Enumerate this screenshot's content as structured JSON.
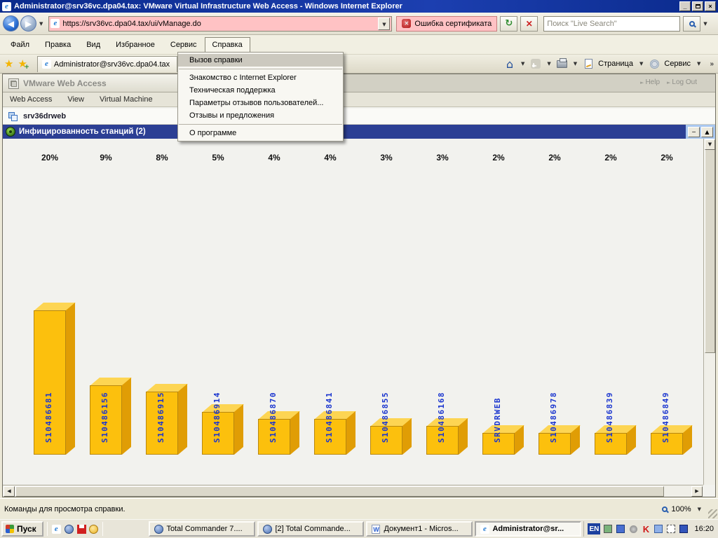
{
  "window": {
    "title": "Administrator@srv36vc.dpa04.tax: VMware Virtual Infrastructure Web Access - Windows Internet Explorer"
  },
  "address_bar": {
    "url": "https://srv36vc.dpa04.tax/ui/vManage.do",
    "cert_error": "Ошибка сертификата",
    "search_placeholder": "Поиск \"Live Search\""
  },
  "menu_bar": {
    "items": [
      "Файл",
      "Правка",
      "Вид",
      "Избранное",
      "Сервис",
      "Справка"
    ],
    "active_item": "Справка"
  },
  "help_menu": {
    "highlighted": "Вызов справки",
    "groups": [
      [
        "Вызов справки"
      ],
      [
        "Знакомство с Internet Explorer",
        "Техническая поддержка",
        "Параметры отзывов пользователей...",
        "Отзывы и предложения"
      ],
      [
        "О программе"
      ]
    ]
  },
  "tabs": {
    "active": "Administrator@srv36vc.dpa04.tax"
  },
  "command_bar": {
    "page_label": "Страница",
    "tools_label": "Сервис",
    "overflow": "»"
  },
  "vmware": {
    "app_title": "VMware Web Access",
    "menu_items": [
      "Web Access",
      "View",
      "Virtual Machine"
    ],
    "header_links": [
      "Help",
      "Log Out"
    ],
    "host_name": "srv36drweb",
    "section_title": "Инфицированность станций (2)"
  },
  "chart_data": {
    "type": "bar",
    "title": "Инфицированность станций (2)",
    "categories": [
      "S10486681",
      "S10486156",
      "S10486915",
      "S10486914",
      "S10486870",
      "S10486841",
      "S10486855",
      "S10486168",
      "SRVDRWEB",
      "S10486978",
      "S10486839",
      "S10486849"
    ],
    "values": [
      20,
      9,
      8,
      5,
      4,
      4,
      3,
      3,
      2,
      2,
      2,
      2
    ],
    "value_suffix": "%",
    "bar_color": "#fcc00d",
    "label_color": "#1a35cf",
    "style": "3d-column",
    "legend": "none",
    "grid": false
  },
  "status_bar": {
    "text": "Команды для просмотра справки.",
    "zoom_level": "100%"
  },
  "taskbar": {
    "start_label": "Пуск",
    "buttons": [
      {
        "app": "total-commander",
        "label": "Total Commander 7....",
        "active": false
      },
      {
        "app": "total-commander",
        "label": "[2] Total Commande...",
        "active": false
      },
      {
        "app": "word",
        "label": "Документ1 - Micros...",
        "active": false
      },
      {
        "app": "internet-explorer",
        "label": "Administrator@sr...",
        "active": true
      }
    ],
    "language": "EN",
    "clock": "16:20"
  }
}
